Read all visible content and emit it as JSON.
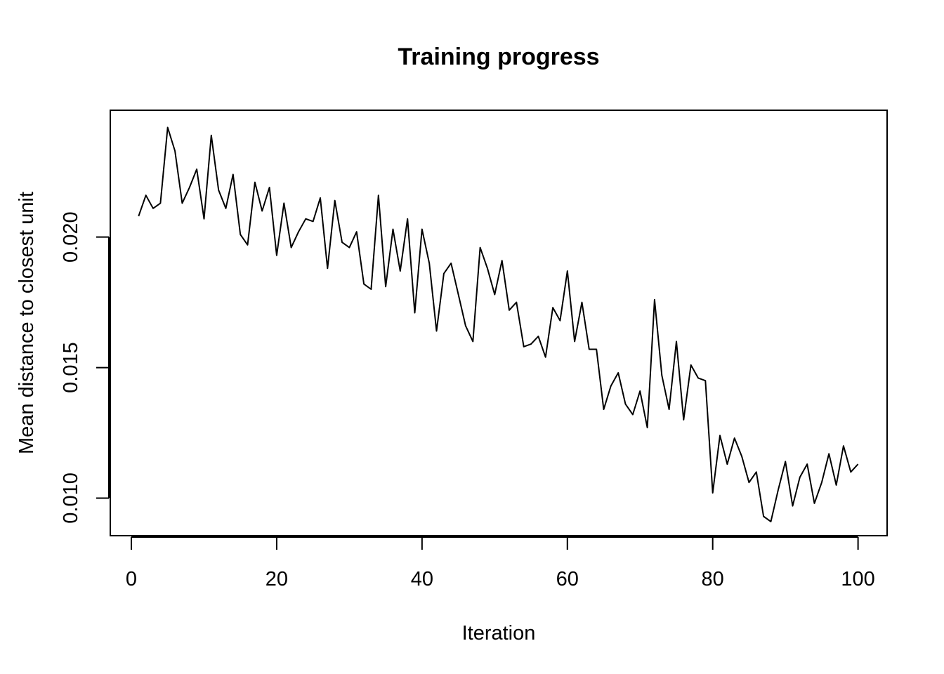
{
  "chart_data": {
    "type": "line",
    "title": "Training progress",
    "xlabel": "Iteration",
    "ylabel": "Mean distance to closest unit",
    "xlim": [
      -2.9,
      104
    ],
    "ylim": [
      0.00856,
      0.02486
    ],
    "x_ticks": [
      0,
      20,
      40,
      60,
      80,
      100
    ],
    "x_tick_labels": [
      "0",
      "20",
      "40",
      "60",
      "80",
      "100"
    ],
    "y_ticks": [
      0.01,
      0.015,
      0.02
    ],
    "y_tick_labels": [
      "0.010",
      "0.015",
      "0.020"
    ],
    "grid": false,
    "legend": "none",
    "series": [
      {
        "x": [
          1,
          2,
          3,
          4,
          5,
          6,
          7,
          8,
          9,
          10,
          11,
          12,
          13,
          14,
          15,
          16,
          17,
          18,
          19,
          20,
          21,
          22,
          23,
          24,
          25,
          26,
          27,
          28,
          29,
          30,
          31,
          32,
          33,
          34,
          35,
          36,
          37,
          38,
          39,
          40,
          41,
          42,
          43,
          44,
          45,
          46,
          47,
          48,
          49,
          50,
          51,
          52,
          53,
          54,
          55,
          56,
          57,
          58,
          59,
          60,
          61,
          62,
          63,
          64,
          65,
          66,
          67,
          68,
          69,
          70,
          71,
          72,
          73,
          74,
          75,
          76,
          77,
          78,
          79,
          80,
          81,
          82,
          83,
          84,
          85,
          86,
          87,
          88,
          89,
          90,
          91,
          92,
          93,
          94,
          95,
          96,
          97,
          98,
          99,
          100
        ],
        "values": [
          0.0208,
          0.0216,
          0.0211,
          0.0213,
          0.0242,
          0.0233,
          0.0213,
          0.0219,
          0.0226,
          0.0207,
          0.0239,
          0.0218,
          0.0211,
          0.0224,
          0.0201,
          0.0197,
          0.0221,
          0.021,
          0.0219,
          0.0193,
          0.0213,
          0.0196,
          0.0202,
          0.0207,
          0.0206,
          0.0215,
          0.0188,
          0.0214,
          0.0198,
          0.0196,
          0.0202,
          0.0182,
          0.018,
          0.0216,
          0.0181,
          0.0203,
          0.0187,
          0.0207,
          0.0171,
          0.0203,
          0.019,
          0.0164,
          0.0186,
          0.019,
          0.0178,
          0.0166,
          0.016,
          0.0196,
          0.0188,
          0.0178,
          0.0191,
          0.0172,
          0.0175,
          0.0158,
          0.0159,
          0.0162,
          0.0154,
          0.0173,
          0.0168,
          0.0187,
          0.016,
          0.0175,
          0.0157,
          0.0157,
          0.0134,
          0.0143,
          0.0148,
          0.0136,
          0.0132,
          0.0141,
          0.0127,
          0.0176,
          0.0147,
          0.0134,
          0.016,
          0.013,
          0.0151,
          0.0146,
          0.0145,
          0.0102,
          0.0124,
          0.0113,
          0.0123,
          0.0116,
          0.0106,
          0.011,
          0.0093,
          0.0091,
          0.0103,
          0.0114,
          0.0097,
          0.0108,
          0.0113,
          0.0098,
          0.0106,
          0.0117,
          0.0105,
          0.012,
          0.011,
          0.0113
        ]
      }
    ]
  }
}
